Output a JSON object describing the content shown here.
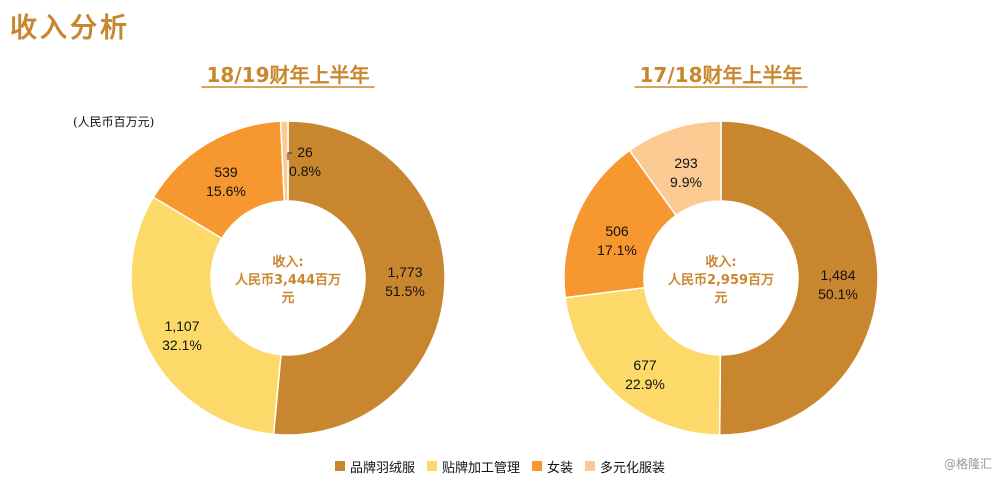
{
  "page": {
    "title": "收入分析",
    "unit_label": "(人民币百万元)",
    "watermark": "@格隆汇"
  },
  "colors": {
    "title": "#C8872F",
    "segments": [
      "#C8872F",
      "#FCD969",
      "#F7972F",
      "#FCCB93"
    ]
  },
  "legend": [
    "品牌羽绒服",
    "贴牌加工管理",
    "女装",
    "多元化服装"
  ],
  "chart_data": [
    {
      "type": "pie",
      "donut": true,
      "title": "18/19财年上半年",
      "center_label": [
        "收入:",
        "人民币3,444百万",
        "元"
      ],
      "categories": [
        "品牌羽绒服",
        "贴牌加工管理",
        "女装",
        "多元化服装"
      ],
      "values": [
        1773,
        1107,
        539,
        26
      ],
      "value_labels": [
        "1,773",
        "1,107",
        "539",
        "26"
      ],
      "percent_labels": [
        "51.5%",
        "32.1%",
        "15.6%",
        "0.8%"
      ],
      "legend_position": "bottom"
    },
    {
      "type": "pie",
      "donut": true,
      "title": "17/18财年上半年",
      "center_label": [
        "收入:",
        "人民币2,959百万",
        "元"
      ],
      "categories": [
        "品牌羽绒服",
        "贴牌加工管理",
        "女装",
        "多元化服装"
      ],
      "values": [
        1484,
        677,
        506,
        293
      ],
      "value_labels": [
        "1,484",
        "677",
        "506",
        "293"
      ],
      "percent_labels": [
        "50.1%",
        "22.9%",
        "17.1%",
        "9.9%"
      ],
      "legend_position": "bottom"
    }
  ]
}
